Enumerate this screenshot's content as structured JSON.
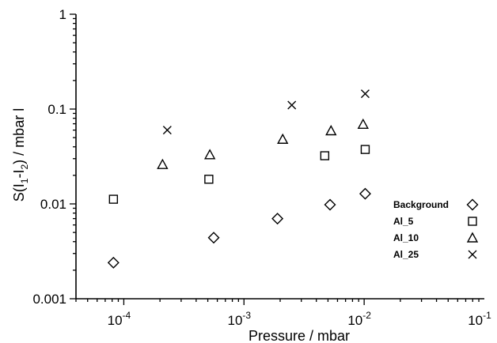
{
  "chart_data": {
    "type": "scatter",
    "title": "",
    "xlabel": "Pressure / mbar",
    "ylabel": {
      "base": "S(I",
      "sub1": "1",
      "mid": "-I",
      "sub2": "2",
      "tail": ") / mbar l"
    },
    "xscale": "log",
    "yscale": "log",
    "xlim": [
      4e-05,
      0.1
    ],
    "ylim": [
      0.001,
      1
    ],
    "x_ticks": [
      {
        "value": 0.0001,
        "base": "10",
        "exp": "-4"
      },
      {
        "value": 0.001,
        "base": "10",
        "exp": "-3"
      },
      {
        "value": 0.01,
        "base": "10",
        "exp": "-2"
      },
      {
        "value": 0.1,
        "base": "10",
        "exp": "-1"
      }
    ],
    "y_ticks": [
      {
        "value": 0.001,
        "label": "0.001"
      },
      {
        "value": 0.01,
        "label": "0.01"
      },
      {
        "value": 0.1,
        "label": "0.1"
      },
      {
        "value": 1,
        "label": "1"
      }
    ],
    "grid": false,
    "legend_position": "bottom-right",
    "series": [
      {
        "name": "Background",
        "marker": "diamond",
        "x": [
          8.2e-05,
          0.00056,
          0.0019,
          0.0052,
          0.0102
        ],
        "y": [
          0.0024,
          0.0044,
          0.007,
          0.0098,
          0.0128
        ]
      },
      {
        "name": "Al_5",
        "marker": "square",
        "x": [
          8.2e-05,
          0.00051,
          0.0047,
          0.0102
        ],
        "y": [
          0.0112,
          0.0182,
          0.0322,
          0.0375
        ]
      },
      {
        "name": "Al_10",
        "marker": "triangle",
        "x": [
          0.00021,
          0.00052,
          0.0021,
          0.0053,
          0.0098
        ],
        "y": [
          0.026,
          0.033,
          0.048,
          0.059,
          0.069
        ]
      },
      {
        "name": "Al_25",
        "marker": "cross",
        "x": [
          0.00023,
          0.0025,
          0.0102
        ],
        "y": [
          0.06,
          0.11,
          0.145
        ]
      }
    ]
  }
}
